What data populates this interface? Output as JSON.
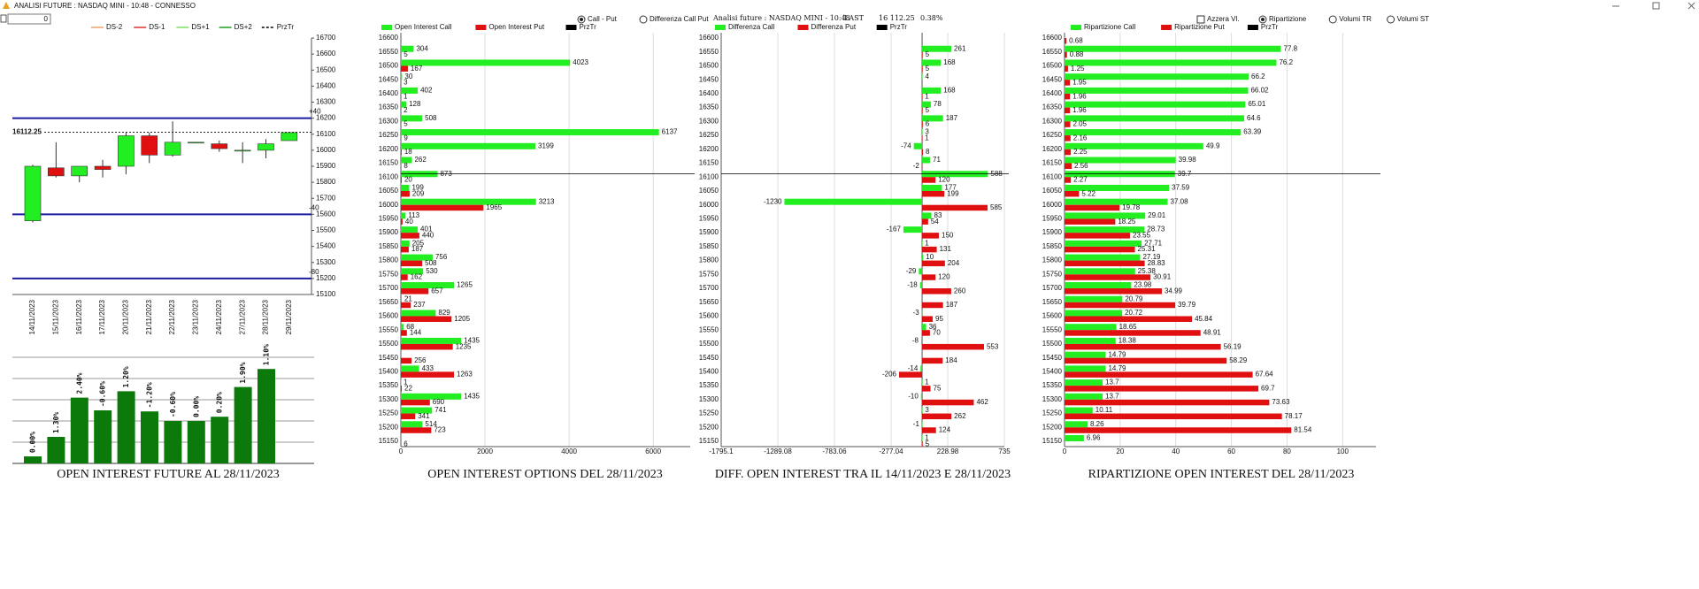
{
  "window": {
    "title": "ANALISI FUTURE : NASDAQ MINI - 10:48 - CONNESSO",
    "input": "0"
  },
  "chart_data": [
    {
      "type": "candlestick",
      "legend": [
        {
          "name": "DS-2",
          "color": "#f0a070"
        },
        {
          "name": "DS-1",
          "color": "#e03030"
        },
        {
          "name": "DS+1",
          "color": "#80e060"
        },
        {
          "name": "DS+2",
          "color": "#20a020"
        },
        {
          "name": "PrzTr",
          "color": "#000000",
          "dashed": true
        }
      ],
      "dates": [
        "14/11/2023",
        "15/11/2023",
        "16/11/2023",
        "17/11/2023",
        "20/11/2023",
        "21/11/2023",
        "22/11/2023",
        "23/11/2023",
        "24/11/2023",
        "27/11/2023",
        "28/11/2023",
        "29/11/2023"
      ],
      "open": [
        15560,
        15890,
        15840,
        15900,
        15900,
        16090,
        15970,
        16050,
        16040,
        16000,
        16000,
        16060
      ],
      "high": [
        15910,
        16050,
        15900,
        15940,
        16110,
        16110,
        16180,
        16050,
        16060,
        16050,
        16070,
        16110
      ],
      "low": [
        15550,
        15830,
        15800,
        15830,
        15850,
        15920,
        15960,
        16050,
        15990,
        15920,
        15950,
        16060
      ],
      "close": [
        15900,
        15840,
        15900,
        15880,
        16090,
        15970,
        16050,
        16050,
        16010,
        16000,
        16040,
        16110
      ],
      "up_color": "#22ee22",
      "down_color": "#e01010",
      "ylim": [
        15100,
        16700
      ],
      "yticks": [
        15100,
        15200,
        15300,
        15400,
        15500,
        15600,
        15700,
        15800,
        15900,
        16000,
        16100,
        16200,
        16300,
        16400,
        16500,
        16600,
        16700
      ],
      "levels": [
        {
          "value": 16200,
          "label": "+40"
        },
        {
          "value": 15600,
          "label": "-40"
        },
        {
          "value": 15200,
          "label": "-80"
        }
      ],
      "level_color": "#1c1ca0",
      "last_price": {
        "value": 16112.25,
        "label": "16112.25"
      }
    },
    {
      "type": "bar",
      "title": "OPEN INTEREST FUTURE AL 28/11/2023",
      "values": [
        0.33,
        1.25,
        3.1,
        2.5,
        3.4,
        2.45,
        2.0,
        2.0,
        2.2,
        3.6,
        4.45
      ],
      "bar_labels": [
        "0.00%",
        "1.30%",
        "2.40%",
        "-0.60%",
        "1.20%",
        "-1.20%",
        "-0.60%",
        "0.00%",
        "0.20%",
        "1.90%",
        "1.10%"
      ],
      "color": "#0b7a0b",
      "ylim": [
        0,
        5
      ],
      "yticks": [
        1,
        2,
        3,
        4,
        5
      ],
      "tick_labels": false,
      "grid": true
    },
    {
      "type": "hbar",
      "title": "OPEN INTEREST OPTIONS DEL 28/11/2023",
      "options": [
        {
          "label": "Call - Put",
          "kind": "radio",
          "selected": true
        },
        {
          "label": "Differenza Call Put",
          "kind": "radio",
          "selected": false
        }
      ],
      "categories": [
        16600,
        16550,
        16500,
        16450,
        16400,
        16350,
        16300,
        16250,
        16200,
        16150,
        16100,
        16050,
        16000,
        15950,
        15900,
        15850,
        15800,
        15750,
        15700,
        15650,
        15600,
        15550,
        15500,
        15450,
        15400,
        15350,
        15300,
        15250,
        15200,
        15150
      ],
      "series": [
        {
          "name": "Open Interest Call",
          "color": "#22ee22",
          "values": [
            null,
            304,
            4023,
            30,
            402,
            128,
            508,
            6137,
            3199,
            262,
            873,
            199,
            3213,
            113,
            401,
            205,
            756,
            530,
            1265,
            21,
            829,
            68,
            1435,
            null,
            433,
            1,
            1435,
            741,
            514,
            null
          ]
        },
        {
          "name": "Open Interest Put",
          "color": "#e01010",
          "values": [
            null,
            5,
            167,
            3,
            1,
            2,
            5,
            9,
            18,
            8,
            20,
            209,
            1965,
            40,
            440,
            187,
            508,
            162,
            657,
            237,
            1205,
            144,
            1235,
            256,
            1263,
            22,
            690,
            341,
            723,
            6
          ]
        }
      ],
      "price_line": {
        "name": "PrzTr",
        "color": "#000000",
        "value": 16112.25
      },
      "xlim": [
        0,
        6880
      ],
      "xticks": [
        0,
        2000,
        4000,
        6000
      ]
    },
    {
      "type": "hbar",
      "title": "DIFF. OPEN INTEREST TRA IL 14/11/2023 E 28/11/2023",
      "header": {
        "title": "Analisi future : NASDAQ MINI - 10:48",
        "last_label": "LAST",
        "last": "16 112.25",
        "change": "0.38%"
      },
      "categories": [
        16600,
        16550,
        16500,
        16450,
        16400,
        16350,
        16300,
        16250,
        16200,
        16150,
        16100,
        16050,
        16000,
        15950,
        15900,
        15850,
        15800,
        15750,
        15700,
        15650,
        15600,
        15550,
        15500,
        15450,
        15400,
        15350,
        15300,
        15250,
        15200,
        15150
      ],
      "series": [
        {
          "name": "Differenza Call",
          "color": "#22ee22",
          "values": [
            null,
            261,
            168,
            4,
            168,
            78,
            187,
            3,
            -74,
            71,
            588,
            177,
            -1230,
            83,
            -167,
            1,
            10,
            -29,
            -18,
            null,
            -3,
            36,
            -8,
            null,
            -14,
            1,
            -10,
            3,
            -1,
            1
          ]
        },
        {
          "name": "Differenza Put",
          "color": "#e01010",
          "values": [
            null,
            5,
            5,
            null,
            1,
            5,
            6,
            1,
            8,
            -2,
            120,
            199,
            585,
            54,
            150,
            131,
            204,
            120,
            260,
            187,
            95,
            70,
            553,
            184,
            -206,
            75,
            462,
            262,
            124,
            5
          ]
        }
      ],
      "price_line": {
        "name": "PrzTr",
        "color": "#000000",
        "value": 16112.25
      },
      "xlim": [
        -1795.1,
        735
      ],
      "xticks": [
        -1795.1,
        -1289.08,
        -783.06,
        -277.04,
        228.98,
        735
      ]
    },
    {
      "type": "hbar",
      "title": "RIPARTIZIONE OPEN INTEREST DEL 28/11/2023",
      "options": [
        {
          "label": "Azzera Vl.",
          "kind": "checkbox",
          "selected": false
        },
        {
          "label": "Ripartizione",
          "kind": "radio",
          "selected": true
        },
        {
          "label": "Volumi TR",
          "kind": "radio",
          "selected": false
        },
        {
          "label": "Volumi ST",
          "kind": "radio",
          "selected": false
        }
      ],
      "categories": [
        16600,
        16550,
        16500,
        16450,
        16400,
        16350,
        16300,
        16250,
        16200,
        16150,
        16100,
        16050,
        16000,
        15950,
        15900,
        15850,
        15800,
        15750,
        15700,
        15650,
        15600,
        15550,
        15500,
        15450,
        15400,
        15350,
        15300,
        15250,
        15200,
        15150
      ],
      "series": [
        {
          "name": "Ripartizione Call",
          "color": "#22ee22",
          "values": [
            null,
            77.8,
            76.2,
            66.2,
            66.02,
            65.01,
            64.6,
            63.39,
            49.9,
            39.98,
            39.7,
            37.59,
            37.08,
            29.01,
            28.73,
            27.71,
            27.19,
            25.38,
            23.98,
            20.79,
            20.72,
            18.65,
            18.38,
            14.79,
            14.79,
            13.7,
            13.7,
            10.11,
            8.26,
            6.96
          ]
        },
        {
          "name": "Ripartizione Put",
          "color": "#e01010",
          "values": [
            0.68,
            0.88,
            1.25,
            1.95,
            1.96,
            1.96,
            2.05,
            2.16,
            2.25,
            2.56,
            2.27,
            5.22,
            19.78,
            18.25,
            23.55,
            25.31,
            28.83,
            30.91,
            34.99,
            39.79,
            45.84,
            48.91,
            56.19,
            58.29,
            67.64,
            69.7,
            73.63,
            78.17,
            81.54,
            null
          ]
        }
      ],
      "price_line": {
        "name": "PrzTr",
        "color": "#000000",
        "value": 16112.25
      },
      "xlim": [
        0,
        112
      ],
      "xticks": [
        0,
        20,
        40,
        60,
        80,
        100
      ]
    }
  ]
}
